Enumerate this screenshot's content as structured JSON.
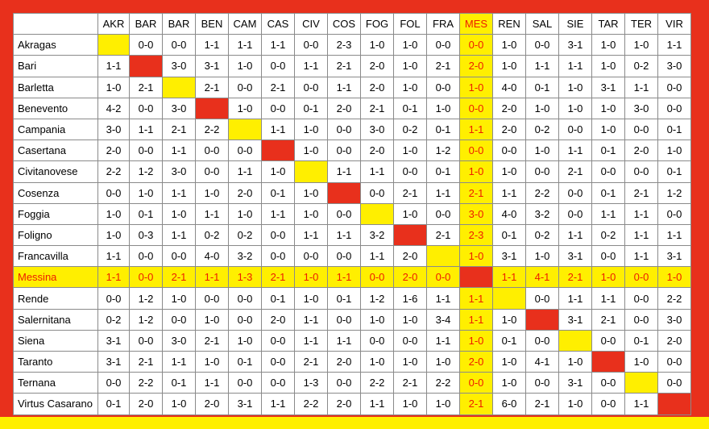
{
  "colors": {
    "frame": "#e8301c",
    "highlight_fill": "#ffef00",
    "highlight_text": "#ee1c00"
  },
  "highlight_team_index": 11,
  "columns": [
    "AKR",
    "BAR",
    "BAR",
    "BEN",
    "CAM",
    "CAS",
    "CIV",
    "COS",
    "FOG",
    "FOL",
    "FRA",
    "MES",
    "REN",
    "SAL",
    "SIE",
    "TAR",
    "TER",
    "VIR"
  ],
  "teams": [
    {
      "name": "Akragas",
      "results": [
        "",
        "0-0",
        "0-0",
        "1-1",
        "1-1",
        "1-1",
        "0-0",
        "2-3",
        "1-0",
        "1-0",
        "0-0",
        "0-0",
        "1-0",
        "0-0",
        "3-1",
        "1-0",
        "1-0",
        "1-1"
      ]
    },
    {
      "name": "Bari",
      "results": [
        "1-1",
        "",
        "3-0",
        "3-1",
        "1-0",
        "0-0",
        "1-1",
        "2-1",
        "2-0",
        "1-0",
        "2-1",
        "2-0",
        "1-0",
        "1-1",
        "1-1",
        "1-0",
        "0-2",
        "3-0"
      ]
    },
    {
      "name": "Barletta",
      "results": [
        "1-0",
        "2-1",
        "",
        "2-1",
        "0-0",
        "2-1",
        "0-0",
        "1-1",
        "2-0",
        "1-0",
        "0-0",
        "1-0",
        "4-0",
        "0-1",
        "1-0",
        "3-1",
        "1-1",
        "0-0"
      ]
    },
    {
      "name": "Benevento",
      "results": [
        "4-2",
        "0-0",
        "3-0",
        "",
        "1-0",
        "0-0",
        "0-1",
        "2-0",
        "2-1",
        "0-1",
        "1-0",
        "0-0",
        "2-0",
        "1-0",
        "1-0",
        "1-0",
        "3-0",
        "0-0"
      ]
    },
    {
      "name": "Campania",
      "results": [
        "3-0",
        "1-1",
        "2-1",
        "2-2",
        "",
        "1-1",
        "1-0",
        "0-0",
        "3-0",
        "0-2",
        "0-1",
        "1-1",
        "2-0",
        "0-2",
        "0-0",
        "1-0",
        "0-0",
        "0-1"
      ]
    },
    {
      "name": "Casertana",
      "results": [
        "2-0",
        "0-0",
        "1-1",
        "0-0",
        "0-0",
        "",
        "1-0",
        "0-0",
        "2-0",
        "1-0",
        "1-2",
        "0-0",
        "0-0",
        "1-0",
        "1-1",
        "0-1",
        "2-0",
        "1-0"
      ]
    },
    {
      "name": "Civitanovese",
      "results": [
        "2-2",
        "1-2",
        "3-0",
        "0-0",
        "1-1",
        "1-0",
        "",
        "1-1",
        "1-1",
        "0-0",
        "0-1",
        "1-0",
        "1-0",
        "0-0",
        "2-1",
        "0-0",
        "0-0",
        "0-1"
      ]
    },
    {
      "name": "Cosenza",
      "results": [
        "0-0",
        "1-0",
        "1-1",
        "1-0",
        "2-0",
        "0-1",
        "1-0",
        "",
        "0-0",
        "2-1",
        "1-1",
        "2-1",
        "1-1",
        "2-2",
        "0-0",
        "0-1",
        "2-1",
        "1-2"
      ]
    },
    {
      "name": "Foggia",
      "results": [
        "1-0",
        "0-1",
        "1-0",
        "1-1",
        "1-0",
        "1-1",
        "1-0",
        "0-0",
        "",
        "1-0",
        "0-0",
        "3-0",
        "4-0",
        "3-2",
        "0-0",
        "1-1",
        "1-1",
        "0-0"
      ]
    },
    {
      "name": "Foligno",
      "results": [
        "1-0",
        "0-3",
        "1-1",
        "0-2",
        "0-2",
        "0-0",
        "1-1",
        "1-1",
        "3-2",
        "",
        "2-1",
        "2-3",
        "0-1",
        "0-2",
        "1-1",
        "0-2",
        "1-1",
        "1-1"
      ]
    },
    {
      "name": "Francavilla",
      "results": [
        "1-1",
        "0-0",
        "0-0",
        "4-0",
        "3-2",
        "0-0",
        "0-0",
        "0-0",
        "1-1",
        "2-0",
        "",
        "1-0",
        "3-1",
        "1-0",
        "3-1",
        "0-0",
        "1-1",
        "3-1"
      ]
    },
    {
      "name": "Messina",
      "results": [
        "1-1",
        "0-0",
        "2-1",
        "1-1",
        "1-3",
        "2-1",
        "1-0",
        "1-1",
        "0-0",
        "2-0",
        "0-0",
        "",
        "1-1",
        "4-1",
        "2-1",
        "1-0",
        "0-0",
        "1-0"
      ]
    },
    {
      "name": "Rende",
      "results": [
        "0-0",
        "1-2",
        "1-0",
        "0-0",
        "0-0",
        "0-1",
        "1-0",
        "0-1",
        "1-2",
        "1-6",
        "1-1",
        "1-1",
        "",
        "0-0",
        "1-1",
        "1-1",
        "0-0",
        "2-2"
      ]
    },
    {
      "name": "Salernitana",
      "results": [
        "0-2",
        "1-2",
        "0-0",
        "1-0",
        "0-0",
        "2-0",
        "1-1",
        "0-0",
        "1-0",
        "1-0",
        "3-4",
        "1-1",
        "1-0",
        "",
        "3-1",
        "2-1",
        "0-0",
        "3-0"
      ]
    },
    {
      "name": "Siena",
      "results": [
        "3-1",
        "0-0",
        "3-0",
        "2-1",
        "1-0",
        "0-0",
        "1-1",
        "1-1",
        "0-0",
        "0-0",
        "1-1",
        "1-0",
        "0-1",
        "0-0",
        "",
        "0-0",
        "0-1",
        "2-0"
      ]
    },
    {
      "name": "Taranto",
      "results": [
        "3-1",
        "2-1",
        "1-1",
        "1-0",
        "0-1",
        "0-0",
        "2-1",
        "2-0",
        "1-0",
        "1-0",
        "1-0",
        "2-0",
        "1-0",
        "4-1",
        "1-0",
        "",
        "1-0",
        "0-0"
      ]
    },
    {
      "name": "Ternana",
      "results": [
        "0-0",
        "2-2",
        "0-1",
        "1-1",
        "0-0",
        "0-0",
        "1-3",
        "0-0",
        "2-2",
        "2-1",
        "2-2",
        "0-0",
        "1-0",
        "0-0",
        "3-1",
        "0-0",
        "",
        "0-0"
      ]
    },
    {
      "name": "Virtus Casarano",
      "results": [
        "0-1",
        "2-0",
        "1-0",
        "2-0",
        "3-1",
        "1-1",
        "2-2",
        "2-0",
        "1-1",
        "1-0",
        "1-0",
        "2-1",
        "6-0",
        "2-1",
        "1-0",
        "0-0",
        "1-1",
        ""
      ]
    }
  ]
}
